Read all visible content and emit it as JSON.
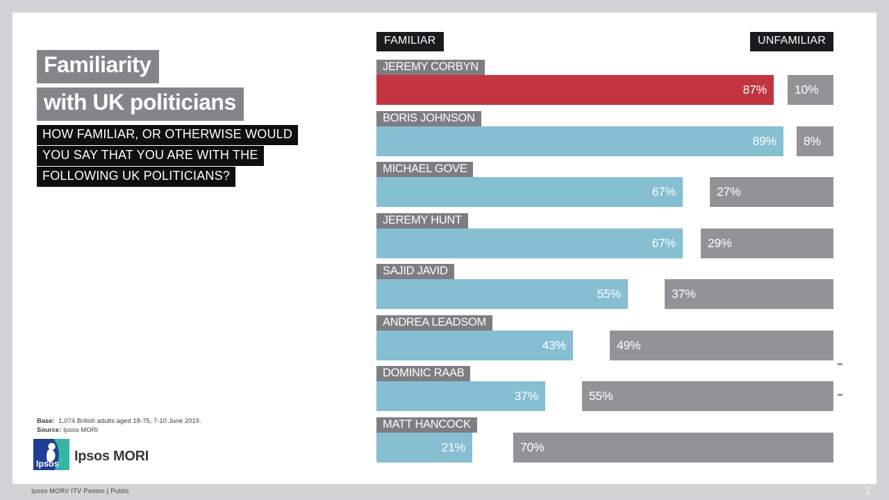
{
  "page": {
    "background": "#D3D3D5",
    "card_background": "#FFFFFF",
    "footer_text": "Ipsos MORI/ ITV Peston  | Public",
    "page_number": "2"
  },
  "title": {
    "line1": "Familiarity",
    "line2": "with UK politicians",
    "bg_color": "#84848A"
  },
  "question": {
    "lines": [
      "HOW FAMILIAR, OR OTHERWISE WOULD",
      "YOU SAY THAT YOU ARE WITH THE",
      "FOLLOWING UK POLITICIANS?"
    ],
    "bg_color": "#0F0F0F"
  },
  "notes": {
    "base_label": "Base:",
    "base_text": "1,074 British adults aged 18-75, 7-10 June 2019.",
    "source_label": "Source:",
    "source_text": "Ipsos MORI"
  },
  "brand": {
    "logo_text": "Ipsos",
    "name": "Ipsos MORI",
    "logo_blue": "#1E3E93",
    "logo_teal": "#35B5A6"
  },
  "chart_data": {
    "type": "bar",
    "orientation": "horizontal",
    "title": "Familiarity with UK politicians",
    "legend": [
      "FAMILIAR",
      "UNFAMILIAR"
    ],
    "legend_position": "top",
    "categories": [
      "JEREMY CORBYN",
      "BORIS JOHNSON",
      "MICHAEL GOVE",
      "JEREMY HUNT",
      "SAJID JAVID",
      "ANDREA LEADSOM",
      "DOMINIC RAAB",
      "MATT HANCOCK"
    ],
    "series": [
      {
        "name": "FAMILIAR",
        "values": [
          87,
          89,
          67,
          67,
          55,
          43,
          37,
          21
        ],
        "color": "#86BED2"
      },
      {
        "name": "UNFAMILIAR",
        "values": [
          10,
          8,
          27,
          29,
          37,
          49,
          55,
          70
        ],
        "color": "#939397"
      }
    ],
    "highlight": {
      "category": "JEREMY CORBYN",
      "series": "FAMILIAR",
      "color": "#C23540"
    },
    "value_suffix": "%",
    "axis_max": 100,
    "grid": false,
    "category_label_bg": "#7D7D83",
    "legend_bg": "#1B1B1D",
    "dash_marker_glyph": "-",
    "dash_marker_rows": [
      "ANDREA LEADSOM",
      "DOMINIC RAAB"
    ]
  }
}
